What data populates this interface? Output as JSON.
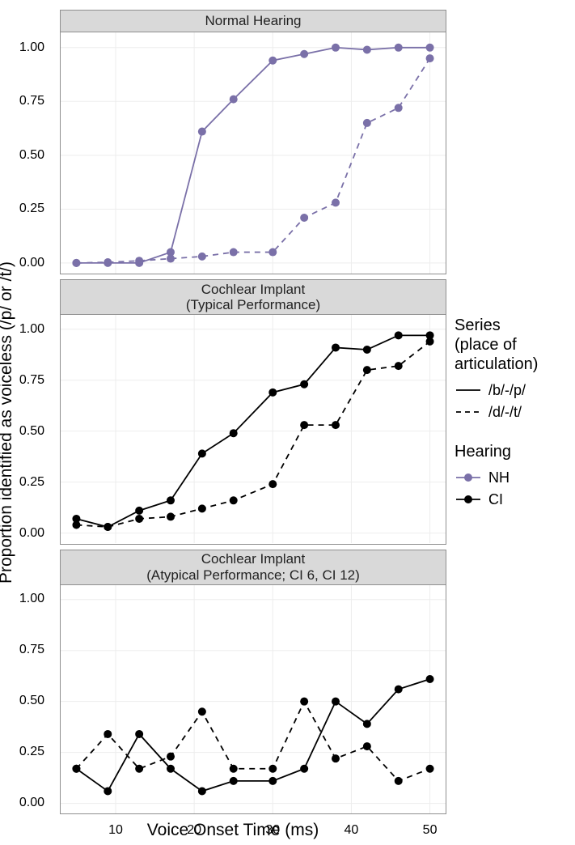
{
  "figure": {
    "ylabel": "Proportion identified as voiceless (/p/ or /t/)",
    "xlabel": "Voice Onset Time (ms)",
    "x": {
      "lim": [
        3,
        52
      ],
      "ticks": [
        10,
        20,
        30,
        40,
        50
      ],
      "fontsize": 16
    },
    "y": {
      "lim": [
        -0.05,
        1.07
      ],
      "ticks": [
        0.0,
        0.25,
        0.5,
        0.75,
        1.0
      ],
      "fontsize": 16
    },
    "gridline_color": "#ededed",
    "panel_border_color": "#8f8f8f",
    "strip_bg": "#d9d9d9",
    "background": "#ffffff",
    "marker_radius": 5.0,
    "line_width": 1.8,
    "x_values": [
      5,
      9,
      13,
      17,
      21,
      25,
      30,
      34,
      38,
      42,
      46,
      50
    ],
    "colors": {
      "NH": "#7a70a8",
      "CI": "#000000"
    },
    "linestyles": {
      "bp": "solid",
      "dt": "dashed"
    },
    "panels": [
      {
        "title_lines": [
          "Normal Hearing"
        ],
        "strip_height": 28,
        "color_key": "NH",
        "show_x_ticks": false,
        "series": {
          "bp": [
            0.0,
            0.0,
            0.0,
            0.05,
            0.61,
            0.76,
            0.94,
            0.97,
            1.0,
            0.99,
            1.0,
            1.0
          ],
          "dt": [
            0.0,
            0.003,
            0.01,
            0.02,
            0.03,
            0.05,
            0.05,
            0.21,
            0.28,
            0.65,
            0.72,
            0.95
          ]
        }
      },
      {
        "title_lines": [
          "Cochlear Implant",
          "(Typical Performance)"
        ],
        "strip_height": 44,
        "color_key": "CI",
        "show_x_ticks": false,
        "series": {
          "bp": [
            0.07,
            0.03,
            0.11,
            0.16,
            0.39,
            0.49,
            0.69,
            0.73,
            0.91,
            0.9,
            0.97,
            0.97
          ],
          "dt": [
            0.04,
            0.03,
            0.07,
            0.08,
            0.12,
            0.16,
            0.24,
            0.53,
            0.53,
            0.8,
            0.82,
            0.94
          ]
        }
      },
      {
        "title_lines": [
          "Cochlear Implant",
          "(Atypical Performance; CI 6, CI 12)"
        ],
        "strip_height": 44,
        "color_key": "CI",
        "show_x_ticks": true,
        "series": {
          "bp": [
            0.17,
            0.06,
            0.34,
            0.17,
            0.06,
            0.11,
            0.11,
            0.17,
            0.5,
            0.39,
            0.56,
            0.61
          ],
          "dt": [
            0.17,
            0.34,
            0.17,
            0.23,
            0.45,
            0.17,
            0.17,
            0.5,
            0.22,
            0.28,
            0.11,
            0.17
          ]
        }
      }
    ],
    "legend": {
      "series_title": "Series\n(place of\narticulation)",
      "series_items": [
        {
          "key": "bp",
          "label": "/b/-/p/",
          "dash": "solid"
        },
        {
          "key": "dt",
          "label": "/d/-/t/",
          "dash": "dashed"
        }
      ],
      "hearing_title": "Hearing",
      "hearing_items": [
        {
          "key": "NH",
          "label": "NH",
          "color": "#7a70a8"
        },
        {
          "key": "CI",
          "label": "CI",
          "color": "#000000"
        }
      ],
      "swatch_bg": "#ffffff"
    }
  }
}
